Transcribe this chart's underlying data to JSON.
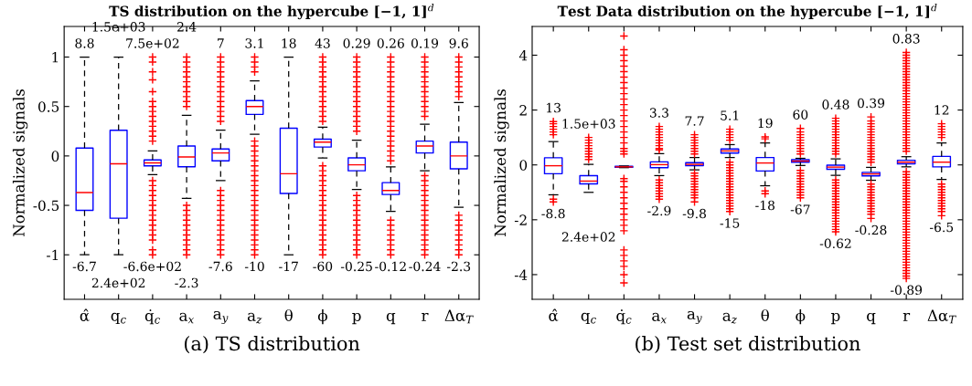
{
  "chart_data": [
    {
      "type": "box",
      "title": "TS distribution on the hypercube [−1, 1]$^{d}$",
      "ylabel": "Normalized signals",
      "categories": [
        "α̂",
        "q$_{c}$",
        "q̇$_{c}$",
        "a$_{x}$",
        "a$_{y}$",
        "a$_{z}$",
        "θ",
        "ϕ",
        "p",
        "q",
        "r",
        "Δα$_{T}$"
      ],
      "ylim": [
        -1.45,
        1.31
      ],
      "yticks": [
        -1,
        -0.5,
        0,
        0.5,
        1
      ],
      "grid": false,
      "boxes": [
        {
          "low": -1,
          "q1": -0.55,
          "median": -0.37,
          "q3": 0.08,
          "high": 1
        },
        {
          "low": -1,
          "q1": -0.63,
          "median": -0.08,
          "q3": 0.26,
          "high": 1
        },
        {
          "low": -0.19,
          "q1": -0.1,
          "median": -0.07,
          "q3": -0.04,
          "high": 0.05,
          "outliers": [
            0.15,
            0.2,
            0.25,
            0.3,
            0.35,
            0.4,
            0.45,
            0.5,
            0.55,
            0.65,
            0.77,
            0.85,
            0.95,
            1,
            -0.25,
            -0.3,
            -0.35,
            -0.4,
            -0.45,
            -0.5,
            -0.55,
            -0.6,
            -0.65,
            -0.7,
            -0.75,
            -0.8,
            -0.85,
            -0.95,
            -1
          ]
        },
        {
          "low": -0.43,
          "q1": -0.11,
          "median": -0.01,
          "q3": 0.1,
          "high": 0.41,
          "outliers": [
            0.5,
            0.55,
            0.6,
            0.65,
            0.7,
            0.75,
            0.8,
            0.85,
            0.9,
            0.95,
            1,
            -0.5,
            -0.55,
            -0.6,
            -0.65,
            -0.7,
            -0.75,
            -0.8,
            -0.85,
            -0.9,
            -0.95,
            -1
          ]
        },
        {
          "low": -0.25,
          "q1": -0.05,
          "median": 0.03,
          "q3": 0.07,
          "high": 0.26,
          "outliers": [
            0.35,
            0.4,
            0.45,
            0.5,
            0.55,
            0.6,
            0.65,
            0.7,
            0.75,
            0.8,
            0.85,
            0.9,
            0.95,
            1,
            -0.35,
            -0.4,
            -0.45,
            -0.5,
            -0.55,
            -0.6,
            -0.65,
            -0.7,
            -0.75,
            -0.8,
            -0.85,
            -0.9,
            -0.95,
            -1
          ]
        },
        {
          "low": 0.22,
          "q1": 0.42,
          "median": 0.5,
          "q3": 0.56,
          "high": 0.76,
          "outliers": [
            0.85,
            0.9,
            0.95,
            1,
            0.15,
            0.1,
            0.05,
            0,
            -0.05,
            -0.1,
            -0.15,
            -0.2,
            -0.25,
            -0.3,
            -0.35,
            -0.4,
            -0.45,
            -0.5,
            -0.55,
            -0.6,
            -0.65,
            -0.7,
            -0.75,
            -0.8,
            -0.85,
            -0.9,
            -0.95,
            -1
          ]
        },
        {
          "low": -1,
          "q1": -0.38,
          "median": -0.18,
          "q3": 0.28,
          "high": 1
        },
        {
          "low": -0.02,
          "q1": 0.09,
          "median": 0.14,
          "q3": 0.17,
          "high": 0.29,
          "outliers": [
            0.35,
            0.4,
            0.45,
            0.5,
            0.55,
            0.6,
            0.65,
            0.7,
            0.75,
            0.8,
            0.85,
            0.9,
            0.95,
            1,
            -0.1,
            -0.15,
            -0.2,
            -0.25,
            -0.3,
            -0.35,
            -0.4,
            -0.45,
            -0.5,
            -0.55,
            -0.6,
            -0.65,
            -0.7,
            -0.75,
            -0.8,
            -0.85,
            -0.9,
            -0.95,
            -1
          ]
        },
        {
          "low": -0.34,
          "q1": -0.15,
          "median": -0.09,
          "q3": -0.02,
          "high": 0.16,
          "outliers": [
            0.25,
            0.3,
            0.35,
            0.4,
            0.45,
            0.5,
            0.55,
            0.6,
            0.65,
            0.7,
            0.75,
            0.8,
            0.85,
            0.9,
            0.95,
            1,
            -0.4,
            -0.45,
            -0.5,
            -0.55,
            -0.6,
            -0.65,
            -0.7,
            -0.75,
            -0.8,
            -0.85,
            -0.9,
            -0.95,
            -1
          ]
        },
        {
          "low": -0.56,
          "q1": -0.39,
          "median": -0.35,
          "q3": -0.27,
          "high": -0.11,
          "outliers": [
            -0.05,
            0,
            0.05,
            0.1,
            0.15,
            0.2,
            0.25,
            0.3,
            0.35,
            0.4,
            0.45,
            0.5,
            0.55,
            0.6,
            0.65,
            0.7,
            0.75,
            0.8,
            0.85,
            0.9,
            0.95,
            1,
            -0.65,
            -0.7,
            -0.75,
            -0.8,
            -0.85,
            -0.9,
            -0.95,
            -1
          ]
        },
        {
          "low": -0.15,
          "q1": 0.03,
          "median": 0.1,
          "q3": 0.15,
          "high": 0.32,
          "outliers": [
            0.4,
            0.45,
            0.5,
            0.55,
            0.6,
            0.65,
            0.7,
            0.75,
            0.8,
            0.85,
            0.9,
            0.95,
            1,
            -0.2,
            -0.25,
            -0.3,
            -0.35,
            -0.4,
            -0.45,
            -0.5,
            -0.55,
            -0.6,
            -0.65,
            -0.7,
            -0.75,
            -0.8,
            -0.85,
            -0.9,
            -0.95,
            -1
          ]
        },
        {
          "low": -0.52,
          "q1": -0.13,
          "median": 0,
          "q3": 0.14,
          "high": 0.54,
          "outliers": [
            0.6,
            0.65,
            0.7,
            0.75,
            0.8,
            0.85,
            0.9,
            0.95,
            1,
            -0.6,
            -0.65,
            -0.7,
            -0.75,
            -0.8,
            -0.85,
            -0.9,
            -0.95,
            -1
          ]
        }
      ],
      "annotations": [
        "8.8",
        "-6.7",
        "1.5e+03",
        "2.4e+02",
        "7.5e+02",
        "-6.6e+02",
        "2.4",
        "-2.3",
        "7",
        "-7.6",
        "3.1",
        "-10",
        "18",
        "-17",
        "43",
        "-60",
        "0.29",
        "-0.25",
        "0.26",
        "-0.12",
        "0.19",
        "-0.24",
        "9.6",
        "-2.3",
        "(a) TS distribution"
      ]
    },
    {
      "type": "box",
      "title": "Test Data distribution on the hypercube [−1, 1]$^{d}$",
      "ylabel": "Normalized signals",
      "categories": [
        "α̂",
        "q$_{c}$",
        "q̇$_{c}$",
        "a$_{x}$",
        "a$_{y}$",
        "a$_{z}$",
        "θ",
        "ϕ",
        "p",
        "q",
        "r",
        "Δα$_{T}$"
      ],
      "ylim": [
        -4.9,
        5.05
      ],
      "yticks": [
        -4,
        -2,
        0,
        2,
        4
      ],
      "grid": false,
      "boxes": [
        {
          "low": -1.09,
          "q1": -0.32,
          "median": -0.03,
          "q3": 0.26,
          "high": 0.85,
          "outliers": [
            1.1,
            1.2,
            1.3,
            1.4,
            1.5,
            1.58,
            -1.25,
            -1.35
          ]
        },
        {
          "low": -1.0,
          "q1": -0.69,
          "median": -0.59,
          "q3": -0.39,
          "high": 0.02,
          "outliers": [
            0.2,
            0.3,
            0.4,
            0.5,
            0.6,
            0.7,
            0.8,
            0.9,
            1.0
          ]
        },
        {
          "low": -0.1,
          "q1": -0.09,
          "median": -0.07,
          "q3": -0.05,
          "high": -0.04,
          "outliers": [
            0.4,
            0.5,
            0.6,
            0.8,
            1.0,
            1.2,
            1.4,
            1.6,
            1.8,
            2.0,
            2.2,
            2.4,
            2.6,
            2.8,
            3.0,
            3.2,
            3.4,
            3.6,
            3.8,
            4.0,
            4.2,
            4.7,
            -0.5,
            -0.6,
            -0.8,
            -1.0,
            -1.2,
            -1.4,
            -1.6,
            -1.8,
            -2.0,
            -2.2,
            -2.4,
            -3.1,
            -3.3,
            -3.5,
            -3.7,
            -4.0,
            -4.3
          ]
        },
        {
          "low": -0.39,
          "q1": -0.1,
          "median": 0.01,
          "q3": 0.11,
          "high": 0.41,
          "outliers": [
            0.55,
            0.6,
            0.7,
            0.8,
            0.9,
            1.0,
            1.1,
            1.2,
            1.3,
            1.4,
            -0.55,
            -0.65,
            -0.75,
            -0.85,
            -0.95,
            -1.05,
            -1.15,
            -1.25
          ]
        },
        {
          "low": -0.18,
          "q1": -0.03,
          "median": 0.02,
          "q3": 0.08,
          "high": 0.27,
          "outliers": [
            0.4,
            0.5,
            0.6,
            0.7,
            0.8,
            0.9,
            1.0,
            1.1,
            -0.3,
            -0.4,
            -0.5,
            -0.6,
            -0.7,
            -0.8,
            -0.9,
            -1.0,
            -1.1,
            -1.2,
            -1.35
          ]
        },
        {
          "low": 0.27,
          "q1": 0.43,
          "median": 0.51,
          "q3": 0.58,
          "high": 0.74,
          "outliers": [
            0.9,
            1.0,
            1.1,
            1.2,
            1.3,
            0.1,
            0,
            -0.1,
            -0.2,
            -0.3,
            -0.4,
            -0.5,
            -0.6,
            -0.7,
            -0.8,
            -0.9,
            -1.0,
            -1.1,
            -1.2,
            -1.3,
            -1.4,
            -1.5,
            -1.6,
            -1.7
          ]
        },
        {
          "low": -0.76,
          "q1": -0.22,
          "median": 0.07,
          "q3": 0.27,
          "high": 0.8,
          "outliers": [
            0.95,
            1.02,
            -0.95,
            -1.05
          ]
        },
        {
          "low": -0.02,
          "q1": 0.1,
          "median": 0.14,
          "q3": 0.19,
          "high": 0.24,
          "outliers": [
            0.4,
            0.5,
            0.6,
            0.7,
            0.8,
            0.9,
            1.0,
            1.1,
            1.2,
            1.33,
            -0.2,
            -0.3,
            -0.4,
            -0.5,
            -0.6,
            -0.7,
            -0.8,
            -0.9,
            -1.0,
            -1.1,
            -1.2
          ]
        },
        {
          "low": -0.38,
          "q1": -0.16,
          "median": -0.08,
          "q3": -0.01,
          "high": 0.22,
          "outliers": [
            0.4,
            0.5,
            0.6,
            0.7,
            0.8,
            0.9,
            1.0,
            1.1,
            1.2,
            1.3,
            1.4,
            1.5,
            1.6,
            1.7,
            -0.55,
            -0.65,
            -0.75,
            -0.85,
            -0.95,
            -1.05,
            -1.15,
            -1.25,
            -1.35,
            -1.45,
            -1.55,
            -1.65,
            -1.75,
            -1.85,
            -1.95,
            -2.05,
            -2.15,
            -2.25,
            -2.35,
            -2.44
          ]
        },
        {
          "low": -0.56,
          "q1": -0.4,
          "median": -0.33,
          "q3": -0.27,
          "high": -0.09,
          "outliers": [
            0.1,
            0.2,
            0.3,
            0.4,
            0.5,
            0.6,
            0.7,
            0.8,
            0.9,
            1.0,
            1.1,
            1.2,
            1.3,
            1.4,
            1.5,
            1.6,
            1.75,
            -0.7,
            -0.8,
            -0.9,
            -1.0,
            -1.1,
            -1.2,
            -1.3,
            -1.4,
            -1.5,
            -1.6,
            -1.7,
            -1.8,
            -1.95
          ]
        },
        {
          "low": -0.07,
          "q1": 0.04,
          "median": 0.1,
          "q3": 0.17,
          "high": 0.3,
          "outliers": [
            0.5,
            0.6,
            0.7,
            0.8,
            0.9,
            1.0,
            1.1,
            1.2,
            1.3,
            1.4,
            1.5,
            1.6,
            1.7,
            1.8,
            1.9,
            2.0,
            2.1,
            2.2,
            2.3,
            2.4,
            2.5,
            2.6,
            2.7,
            2.8,
            2.9,
            3.0,
            3.1,
            3.2,
            3.3,
            3.4,
            3.5,
            3.6,
            3.7,
            3.8,
            3.9,
            4.0,
            4.1,
            -0.25,
            -0.35,
            -0.45,
            -0.55,
            -0.65,
            -0.75,
            -0.85,
            -0.95,
            -1.05,
            -1.15,
            -1.25,
            -1.35,
            -1.45,
            -1.55,
            -1.65,
            -1.75,
            -1.85,
            -1.95,
            -2.05,
            -2.15,
            -2.25,
            -2.35,
            -2.45,
            -2.55,
            -2.65,
            -2.75,
            -2.85,
            -2.95,
            -3.05,
            -3.15,
            -3.25,
            -3.35,
            -3.45,
            -3.55,
            -3.65,
            -3.75,
            -3.85,
            -3.95,
            -4.05,
            -4.14
          ]
        },
        {
          "low": -0.53,
          "q1": -0.07,
          "median": 0.1,
          "q3": 0.31,
          "high": 0.8,
          "outliers": [
            1.0,
            1.1,
            1.2,
            1.3,
            1.4,
            1.5,
            -0.7,
            -0.8,
            -0.9,
            -1.0,
            -1.1,
            -1.2,
            -1.3,
            -1.4,
            -1.5,
            -1.6,
            -1.7,
            -1.85
          ]
        }
      ],
      "annotations": [
        "13",
        "-8.8",
        "1.5e+03",
        "2.4e+02",
        "3.3",
        "-2.9",
        "7.7",
        "-9.8",
        "5.1",
        "-15",
        "19",
        "-18",
        "60",
        "-67",
        "0.48",
        "-0.62",
        "0.39",
        "-0.28",
        "0.83",
        "-0.89",
        "12",
        "-6.5",
        "(b) Test set distribution"
      ]
    }
  ]
}
